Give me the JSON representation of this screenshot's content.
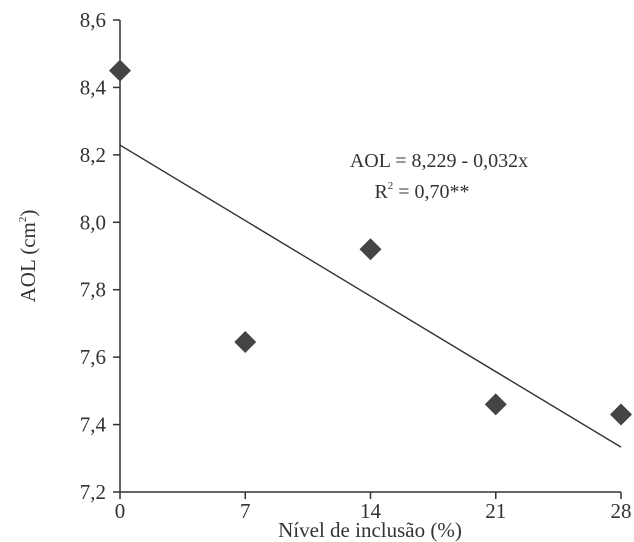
{
  "chart_data": {
    "type": "scatter",
    "xlabel": "Nível de inclusão (%)",
    "ylabel_main": "AOL (cm",
    "ylabel_sup": "2",
    "ylabel_end": ")",
    "xlim": [
      0,
      28
    ],
    "ylim": [
      7.2,
      8.6
    ],
    "x_ticks": [
      0,
      7,
      14,
      21,
      28
    ],
    "x_tick_labels": [
      "0",
      "7",
      "14",
      "21",
      "28"
    ],
    "y_ticks": [
      7.2,
      7.4,
      7.6,
      7.8,
      8.0,
      8.2,
      8.4,
      8.6
    ],
    "y_tick_labels": [
      "7,2",
      "7,4",
      "7,6",
      "7,8",
      "8,0",
      "8,2",
      "8,4",
      "8,6"
    ],
    "grid": false,
    "points": [
      {
        "x": 0,
        "y": 8.45
      },
      {
        "x": 7,
        "y": 7.645
      },
      {
        "x": 14,
        "y": 7.92
      },
      {
        "x": 21,
        "y": 7.46
      },
      {
        "x": 28,
        "y": 7.43
      }
    ],
    "trendline": {
      "intercept": 8.229,
      "slope": -0.032,
      "x_start": 0,
      "x_end": 28
    },
    "annotation": {
      "equation": "AOL = 8,229 - 0,032x",
      "r2_main": "R",
      "r2_sup": "2",
      "r2_rest": " = 0,70**"
    },
    "colors": {
      "marker": "#444444",
      "axis": "#333333",
      "trendline": "#333333"
    }
  }
}
